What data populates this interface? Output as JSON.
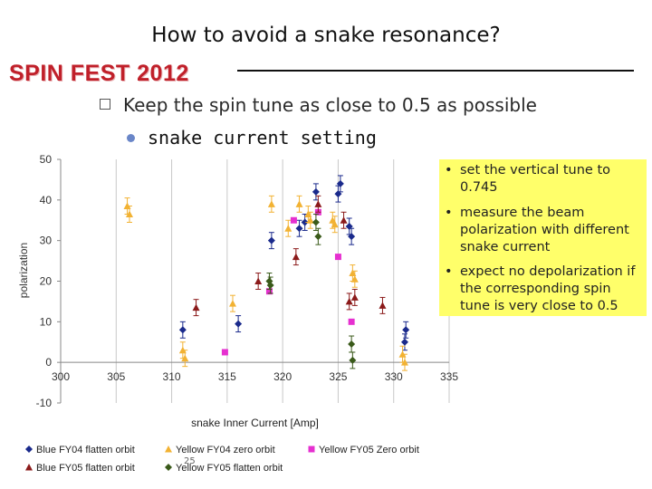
{
  "slide": {
    "title": "How to avoid a snake resonance?",
    "brand": "SPIN FEST 2012",
    "bullet_main": "Keep the spin tune as close to 0.5 as possible",
    "bullet_sub": "snake current setting",
    "page_number": "25"
  },
  "notes": [
    "set the vertical tune to 0.745",
    "measure the beam polarization with different snake current",
    "expect no depolarization if the corresponding spin tune is very close to 0.5"
  ],
  "colors": {
    "brand": "#c0202a",
    "note_bg": "#ffff6a",
    "blue_fy04": "#1a2a8c",
    "yellow_fy04": "#f2b233",
    "yellow_fy05_zero": "#e630d0",
    "blue_fy05": "#8b1a1a",
    "yellow_fy05_flatten": "#3a5a1a"
  },
  "chart_data": {
    "type": "scatter",
    "title": "",
    "xlabel": "snake Inner Current [Amp]",
    "ylabel": "polarization",
    "xlim": [
      300,
      335
    ],
    "ylim": [
      -10,
      50
    ],
    "xticks": [
      300,
      305,
      310,
      315,
      320,
      325,
      330,
      335
    ],
    "yticks": [
      -10,
      0,
      10,
      20,
      30,
      40,
      50
    ],
    "series": [
      {
        "name": "Blue FY04 flatten orbit",
        "marker": "diamond",
        "color": "#1a2a8c",
        "x": [
          311,
          316,
          319,
          321.5,
          322,
          323,
          325,
          325.2,
          326,
          326.2,
          331,
          331.1
        ],
        "y": [
          8,
          9.5,
          30,
          33,
          34.5,
          42,
          41.5,
          44,
          33.5,
          31,
          5,
          8
        ],
        "err": [
          2,
          2,
          2,
          2,
          2,
          2,
          2,
          2,
          2,
          2,
          2,
          2
        ]
      },
      {
        "name": "Yellow FY04 zero orbit",
        "marker": "triangle",
        "color": "#f2b233",
        "x": [
          306,
          306.2,
          311,
          311.2,
          315.5,
          319,
          320.5,
          321.5,
          322.3,
          322.5,
          324.5,
          324.7,
          326.3,
          326.5,
          330.8,
          331
        ],
        "y": [
          38.5,
          36.5,
          3,
          1,
          14.5,
          39,
          33,
          39,
          36.5,
          35,
          35,
          34,
          22,
          20.5,
          2,
          0
        ],
        "err": [
          2,
          2,
          2,
          2,
          2,
          2,
          2,
          2,
          2,
          2,
          2,
          2,
          2,
          2,
          2,
          2
        ]
      },
      {
        "name": "Yellow FY05 Zero orbit",
        "marker": "square",
        "color": "#e630d0",
        "x": [
          314.8,
          318.8,
          321,
          323.2,
          325,
          326.2
        ],
        "y": [
          2.5,
          17.5,
          35,
          37,
          26,
          10
        ],
        "err": [
          0,
          0,
          0,
          0,
          0,
          0
        ]
      },
      {
        "name": "Blue FY05 flatten orbit",
        "marker": "triangle",
        "color": "#8b1a1a",
        "x": [
          312.2,
          317.8,
          321.2,
          323.2,
          325.5,
          326,
          326.5,
          329
        ],
        "y": [
          13.5,
          20,
          26,
          39,
          35,
          15,
          16,
          14
        ],
        "err": [
          2,
          2,
          2,
          2,
          2,
          2,
          2,
          2
        ]
      },
      {
        "name": "Yellow FY05 flatten orbit",
        "marker": "diamond",
        "color": "#3a5a1a",
        "x": [
          318.8,
          318.9,
          323,
          323.2,
          326.2,
          326.3
        ],
        "y": [
          20,
          19,
          34.5,
          31,
          4.5,
          0.5
        ],
        "err": [
          2,
          2,
          2,
          2,
          2,
          2
        ]
      }
    ],
    "legend": "bottom"
  }
}
